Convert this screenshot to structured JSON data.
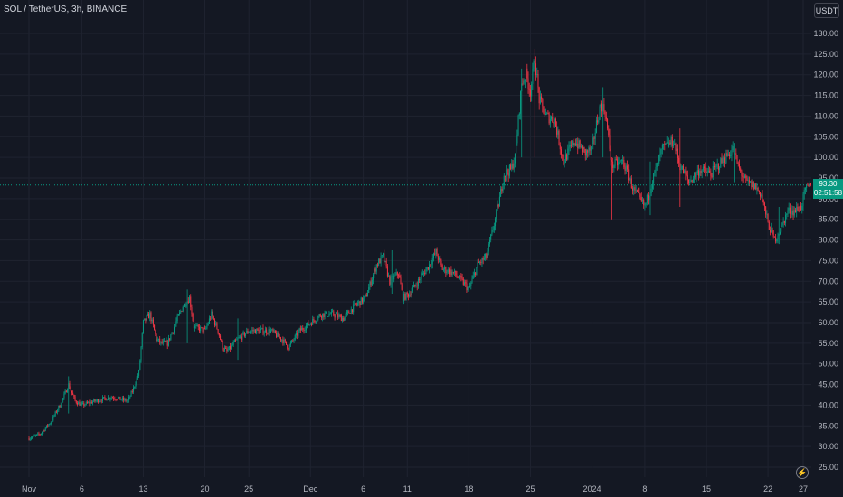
{
  "header": {
    "symbol_label": "SOL / TetherUS, 3h, BINANCE",
    "currency_label": "USDT"
  },
  "last_price": {
    "price": "93.30",
    "countdown": "02:51:58",
    "color": "#089981"
  },
  "colors": {
    "background": "#141823",
    "grid": "#1f2330",
    "up": "#089981",
    "down": "#f23645",
    "axis_text": "#b2b5be",
    "last_line": "#089981"
  },
  "icons": {
    "realtime": "lightning-icon"
  },
  "chart_data": {
    "type": "candlestick",
    "title": "SOL / TetherUS, 3h, BINANCE",
    "y_ticks": [
      "25.00",
      "30.00",
      "35.00",
      "40.00",
      "45.00",
      "50.00",
      "55.00",
      "60.00",
      "65.00",
      "70.00",
      "75.00",
      "80.00",
      "85.00",
      "90.00",
      "95.00",
      "100.00",
      "105.00",
      "110.00",
      "115.00",
      "120.00",
      "125.00",
      "130.00"
    ],
    "ylim": [
      22.5,
      132.5
    ],
    "y_scale": "linear",
    "x_ticks": [
      "Nov",
      "6",
      "13",
      "20",
      "25",
      "Dec",
      "6",
      "11",
      "18",
      "25",
      "2024",
      "8",
      "15",
      "22",
      "27"
    ],
    "x_tick_index": [
      0,
      48,
      104,
      160,
      200,
      256,
      304,
      344,
      400,
      456,
      512,
      560,
      616,
      672,
      704
    ],
    "candle_count": 712,
    "grid": true,
    "last_price": 93.3,
    "price_path": [
      [
        0,
        32
      ],
      [
        10,
        33
      ],
      [
        20,
        36
      ],
      [
        30,
        41
      ],
      [
        36,
        45
      ],
      [
        42,
        41
      ],
      [
        48,
        40
      ],
      [
        60,
        41
      ],
      [
        75,
        42
      ],
      [
        90,
        41
      ],
      [
        95,
        44
      ],
      [
        100,
        48
      ],
      [
        104,
        60
      ],
      [
        110,
        62
      ],
      [
        116,
        56
      ],
      [
        120,
        55
      ],
      [
        126,
        55
      ],
      [
        132,
        59
      ],
      [
        140,
        64
      ],
      [
        146,
        66
      ],
      [
        150,
        59
      ],
      [
        160,
        58
      ],
      [
        166,
        62
      ],
      [
        172,
        58
      ],
      [
        176,
        54
      ],
      [
        180,
        53
      ],
      [
        190,
        56
      ],
      [
        200,
        58
      ],
      [
        210,
        58
      ],
      [
        220,
        58
      ],
      [
        230,
        56
      ],
      [
        236,
        54
      ],
      [
        246,
        58
      ],
      [
        256,
        60
      ],
      [
        266,
        62
      ],
      [
        276,
        62
      ],
      [
        286,
        61
      ],
      [
        296,
        64
      ],
      [
        306,
        66
      ],
      [
        316,
        74
      ],
      [
        322,
        76
      ],
      [
        328,
        70
      ],
      [
        336,
        72
      ],
      [
        340,
        66
      ],
      [
        346,
        67
      ],
      [
        354,
        70
      ],
      [
        364,
        74
      ],
      [
        370,
        77
      ],
      [
        376,
        73
      ],
      [
        386,
        72
      ],
      [
        394,
        70
      ],
      [
        400,
        68
      ],
      [
        408,
        74
      ],
      [
        416,
        76
      ],
      [
        424,
        85
      ],
      [
        428,
        90
      ],
      [
        432,
        96
      ],
      [
        438,
        97
      ],
      [
        442,
        100
      ],
      [
        446,
        112
      ],
      [
        448,
        118
      ],
      [
        452,
        120
      ],
      [
        456,
        116
      ],
      [
        460,
        124
      ],
      [
        464,
        114
      ],
      [
        470,
        110
      ],
      [
        478,
        109
      ],
      [
        486,
        99
      ],
      [
        496,
        104
      ],
      [
        506,
        101
      ],
      [
        512,
        102
      ],
      [
        516,
        108
      ],
      [
        520,
        113
      ],
      [
        524,
        111
      ],
      [
        530,
        98
      ],
      [
        540,
        99
      ],
      [
        550,
        92
      ],
      [
        560,
        88
      ],
      [
        570,
        97
      ],
      [
        576,
        102
      ],
      [
        586,
        104
      ],
      [
        592,
        98
      ],
      [
        600,
        94
      ],
      [
        610,
        97
      ],
      [
        620,
        96
      ],
      [
        630,
        99
      ],
      [
        640,
        102
      ],
      [
        646,
        97
      ],
      [
        652,
        94
      ],
      [
        660,
        93
      ],
      [
        666,
        91
      ],
      [
        672,
        84
      ],
      [
        678,
        80
      ],
      [
        684,
        83
      ],
      [
        690,
        87
      ],
      [
        696,
        87
      ],
      [
        702,
        88
      ],
      [
        706,
        92
      ],
      [
        711,
        93.3
      ]
    ],
    "spikes": [
      {
        "index": 460,
        "high": 126.3,
        "low": 100
      },
      {
        "index": 448,
        "high": 121.5,
        "low": 100
      },
      {
        "index": 522,
        "high": 117,
        "low": 100
      },
      {
        "index": 530,
        "high": 100,
        "low": 85
      },
      {
        "index": 565,
        "high": 99,
        "low": 86
      },
      {
        "index": 592,
        "high": 107,
        "low": 88
      },
      {
        "index": 642,
        "high": 103.5,
        "low": 94
      },
      {
        "index": 682,
        "high": 88,
        "low": 79
      },
      {
        "index": 144,
        "high": 68,
        "low": 55
      },
      {
        "index": 36,
        "high": 47,
        "low": 38
      },
      {
        "index": 190,
        "high": 61,
        "low": 51
      },
      {
        "index": 330,
        "high": 77.5,
        "low": 67
      }
    ]
  }
}
